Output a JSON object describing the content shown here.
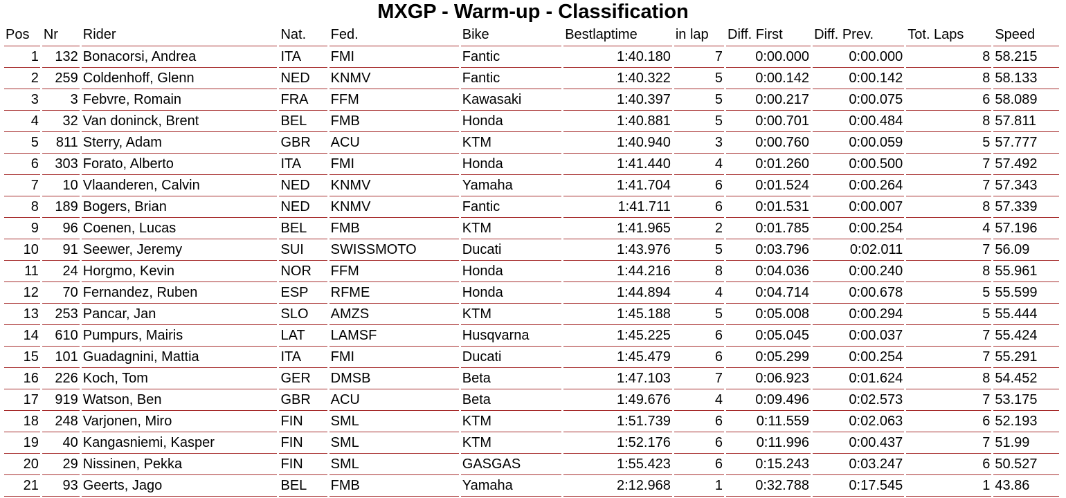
{
  "title": "MXGP - Warm-up - Classification",
  "columns": [
    "Pos",
    "Nr",
    "Rider",
    "Nat.",
    "Fed.",
    "Bike",
    "Bestlaptime",
    "in lap",
    "Diff. First",
    "Diff. Prev.",
    "Tot. Laps",
    "Speed"
  ],
  "rows": [
    {
      "pos": "1",
      "nr": "132",
      "rider": "Bonacorsi, Andrea",
      "nat": "ITA",
      "fed": "FMI",
      "bike": "Fantic",
      "best": "1:40.180",
      "inlap": "7",
      "diff_first": "0:00.000",
      "diff_prev": "0:00.000",
      "laps": "8",
      "speed": "58.215"
    },
    {
      "pos": "2",
      "nr": "259",
      "rider": "Coldenhoff, Glenn",
      "nat": "NED",
      "fed": "KNMV",
      "bike": "Fantic",
      "best": "1:40.322",
      "inlap": "5",
      "diff_first": "0:00.142",
      "diff_prev": "0:00.142",
      "laps": "8",
      "speed": "58.133"
    },
    {
      "pos": "3",
      "nr": "3",
      "rider": "Febvre, Romain",
      "nat": "FRA",
      "fed": "FFM",
      "bike": "Kawasaki",
      "best": "1:40.397",
      "inlap": "5",
      "diff_first": "0:00.217",
      "diff_prev": "0:00.075",
      "laps": "6",
      "speed": "58.089"
    },
    {
      "pos": "4",
      "nr": "32",
      "rider": "Van doninck, Brent",
      "nat": "BEL",
      "fed": "FMB",
      "bike": "Honda",
      "best": "1:40.881",
      "inlap": "5",
      "diff_first": "0:00.701",
      "diff_prev": "0:00.484",
      "laps": "8",
      "speed": "57.811"
    },
    {
      "pos": "5",
      "nr": "811",
      "rider": "Sterry, Adam",
      "nat": "GBR",
      "fed": "ACU",
      "bike": "KTM",
      "best": "1:40.940",
      "inlap": "3",
      "diff_first": "0:00.760",
      "diff_prev": "0:00.059",
      "laps": "5",
      "speed": "57.777"
    },
    {
      "pos": "6",
      "nr": "303",
      "rider": "Forato, Alberto",
      "nat": "ITA",
      "fed": "FMI",
      "bike": "Honda",
      "best": "1:41.440",
      "inlap": "4",
      "diff_first": "0:01.260",
      "diff_prev": "0:00.500",
      "laps": "7",
      "speed": "57.492"
    },
    {
      "pos": "7",
      "nr": "10",
      "rider": "Vlaanderen, Calvin",
      "nat": "NED",
      "fed": "KNMV",
      "bike": "Yamaha",
      "best": "1:41.704",
      "inlap": "6",
      "diff_first": "0:01.524",
      "diff_prev": "0:00.264",
      "laps": "7",
      "speed": "57.343"
    },
    {
      "pos": "8",
      "nr": "189",
      "rider": "Bogers, Brian",
      "nat": "NED",
      "fed": "KNMV",
      "bike": "Fantic",
      "best": "1:41.711",
      "inlap": "6",
      "diff_first": "0:01.531",
      "diff_prev": "0:00.007",
      "laps": "8",
      "speed": "57.339"
    },
    {
      "pos": "9",
      "nr": "96",
      "rider": "Coenen, Lucas",
      "nat": "BEL",
      "fed": "FMB",
      "bike": "KTM",
      "best": "1:41.965",
      "inlap": "2",
      "diff_first": "0:01.785",
      "diff_prev": "0:00.254",
      "laps": "4",
      "speed": "57.196"
    },
    {
      "pos": "10",
      "nr": "91",
      "rider": "Seewer, Jeremy",
      "nat": "SUI",
      "fed": "SWISSMOTO",
      "bike": "Ducati",
      "best": "1:43.976",
      "inlap": "5",
      "diff_first": "0:03.796",
      "diff_prev": "0:02.011",
      "laps": "7",
      "speed": "56.09"
    },
    {
      "pos": "11",
      "nr": "24",
      "rider": "Horgmo, Kevin",
      "nat": "NOR",
      "fed": "FFM",
      "bike": "Honda",
      "best": "1:44.216",
      "inlap": "8",
      "diff_first": "0:04.036",
      "diff_prev": "0:00.240",
      "laps": "8",
      "speed": "55.961"
    },
    {
      "pos": "12",
      "nr": "70",
      "rider": "Fernandez, Ruben",
      "nat": "ESP",
      "fed": "RFME",
      "bike": "Honda",
      "best": "1:44.894",
      "inlap": "4",
      "diff_first": "0:04.714",
      "diff_prev": "0:00.678",
      "laps": "5",
      "speed": "55.599"
    },
    {
      "pos": "13",
      "nr": "253",
      "rider": "Pancar, Jan",
      "nat": "SLO",
      "fed": "AMZS",
      "bike": "KTM",
      "best": "1:45.188",
      "inlap": "5",
      "diff_first": "0:05.008",
      "diff_prev": "0:00.294",
      "laps": "5",
      "speed": "55.444"
    },
    {
      "pos": "14",
      "nr": "610",
      "rider": "Pumpurs, Mairis",
      "nat": "LAT",
      "fed": "LAMSF",
      "bike": "Husqvarna",
      "best": "1:45.225",
      "inlap": "6",
      "diff_first": "0:05.045",
      "diff_prev": "0:00.037",
      "laps": "7",
      "speed": "55.424"
    },
    {
      "pos": "15",
      "nr": "101",
      "rider": "Guadagnini, Mattia",
      "nat": "ITA",
      "fed": "FMI",
      "bike": "Ducati",
      "best": "1:45.479",
      "inlap": "6",
      "diff_first": "0:05.299",
      "diff_prev": "0:00.254",
      "laps": "7",
      "speed": "55.291"
    },
    {
      "pos": "16",
      "nr": "226",
      "rider": "Koch, Tom",
      "nat": "GER",
      "fed": "DMSB",
      "bike": "Beta",
      "best": "1:47.103",
      "inlap": "7",
      "diff_first": "0:06.923",
      "diff_prev": "0:01.624",
      "laps": "8",
      "speed": "54.452"
    },
    {
      "pos": "17",
      "nr": "919",
      "rider": "Watson, Ben",
      "nat": "GBR",
      "fed": "ACU",
      "bike": "Beta",
      "best": "1:49.676",
      "inlap": "4",
      "diff_first": "0:09.496",
      "diff_prev": "0:02.573",
      "laps": "7",
      "speed": "53.175"
    },
    {
      "pos": "18",
      "nr": "248",
      "rider": "Varjonen, Miro",
      "nat": "FIN",
      "fed": "SML",
      "bike": "KTM",
      "best": "1:51.739",
      "inlap": "6",
      "diff_first": "0:11.559",
      "diff_prev": "0:02.063",
      "laps": "6",
      "speed": "52.193"
    },
    {
      "pos": "19",
      "nr": "40",
      "rider": "Kangasniemi, Kasper",
      "nat": "FIN",
      "fed": "SML",
      "bike": "KTM",
      "best": "1:52.176",
      "inlap": "6",
      "diff_first": "0:11.996",
      "diff_prev": "0:00.437",
      "laps": "7",
      "speed": "51.99"
    },
    {
      "pos": "20",
      "nr": "29",
      "rider": "Nissinen, Pekka",
      "nat": "FIN",
      "fed": "SML",
      "bike": "GASGAS",
      "best": "1:55.423",
      "inlap": "6",
      "diff_first": "0:15.243",
      "diff_prev": "0:03.247",
      "laps": "6",
      "speed": "50.527"
    },
    {
      "pos": "21",
      "nr": "93",
      "rider": "Geerts, Jago",
      "nat": "BEL",
      "fed": "FMB",
      "bike": "Yamaha",
      "best": "2:12.968",
      "inlap": "1",
      "diff_first": "0:32.788",
      "diff_prev": "0:17.545",
      "laps": "1",
      "speed": "43.86"
    }
  ],
  "colors": {
    "row_border": "#a52a2a",
    "text": "#000000",
    "background": "#ffffff"
  }
}
